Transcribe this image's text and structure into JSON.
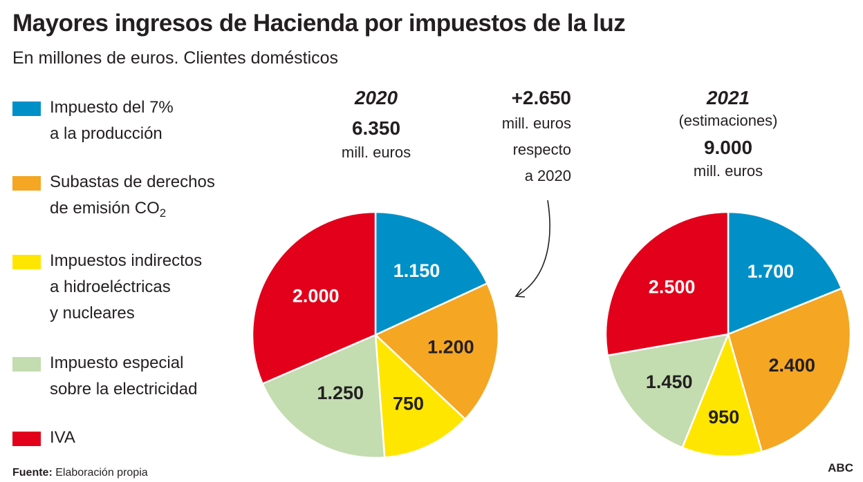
{
  "title": "Mayores ingresos de Hacienda por impuestos de la luz",
  "subtitle": "En millones de euros. Clientes domésticos",
  "legend": [
    {
      "lines": [
        "Impuesto del 7%",
        "a la producción"
      ],
      "color": "#0090c8"
    },
    {
      "lines": [
        "Subastas de derechos",
        "de emisión CO"
      ],
      "subscript": "2",
      "color": "#f5a623"
    },
    {
      "lines": [
        "Impuestos indirectos",
        "a hidroeléctricas",
        "y nucleares"
      ],
      "color": "#ffe600"
    },
    {
      "lines": [
        "Impuesto especial",
        "sobre la electricidad"
      ],
      "color": "#c3dcb0"
    },
    {
      "lines": [
        "IVA"
      ],
      "color": "#e2001a"
    }
  ],
  "pie_2020": {
    "year": "2020",
    "total": "6.350",
    "unit": "mill. euros"
  },
  "pie_2021": {
    "year": "2021",
    "note": "(estimaciones)",
    "total": "9.000",
    "unit": "mill. euros"
  },
  "difference": {
    "value": "+2.650",
    "lines": [
      "mill. euros",
      "respecto",
      "a 2020"
    ]
  },
  "source_label": "Fuente:",
  "source_text": " Elaboración propia",
  "brand": "ABC",
  "chart_data": [
    {
      "type": "pie",
      "title": "2020",
      "total": 6350,
      "categories": [
        "Impuesto del 7% a la producción",
        "Subastas de derechos de emisión CO2",
        "Impuestos indirectos a hidroeléctricas y nucleares",
        "Impuesto especial sobre la electricidad",
        "IVA"
      ],
      "values": [
        1150,
        1200,
        750,
        1250,
        2000
      ],
      "labels": [
        "1.150",
        "1.200",
        "750",
        "1.250",
        "2.000"
      ],
      "colors": [
        "#0090c8",
        "#f5a623",
        "#ffe600",
        "#c3dcb0",
        "#e2001a"
      ],
      "label_colors": [
        "#ffffff",
        "#231f20",
        "#231f20",
        "#231f20",
        "#ffffff"
      ]
    },
    {
      "type": "pie",
      "title": "2021 (estimaciones)",
      "total": 9000,
      "categories": [
        "Impuesto del 7% a la producción",
        "Subastas de derechos de emisión CO2",
        "Impuestos indirectos a hidroeléctricas y nucleares",
        "Impuesto especial sobre la electricidad",
        "IVA"
      ],
      "values": [
        1700,
        2400,
        950,
        1450,
        2500
      ],
      "labels": [
        "1.700",
        "2.400",
        "950",
        "1.450",
        "2.500"
      ],
      "colors": [
        "#0090c8",
        "#f5a623",
        "#ffe600",
        "#c3dcb0",
        "#e2001a"
      ],
      "label_colors": [
        "#ffffff",
        "#231f20",
        "#231f20",
        "#231f20",
        "#ffffff"
      ]
    }
  ]
}
